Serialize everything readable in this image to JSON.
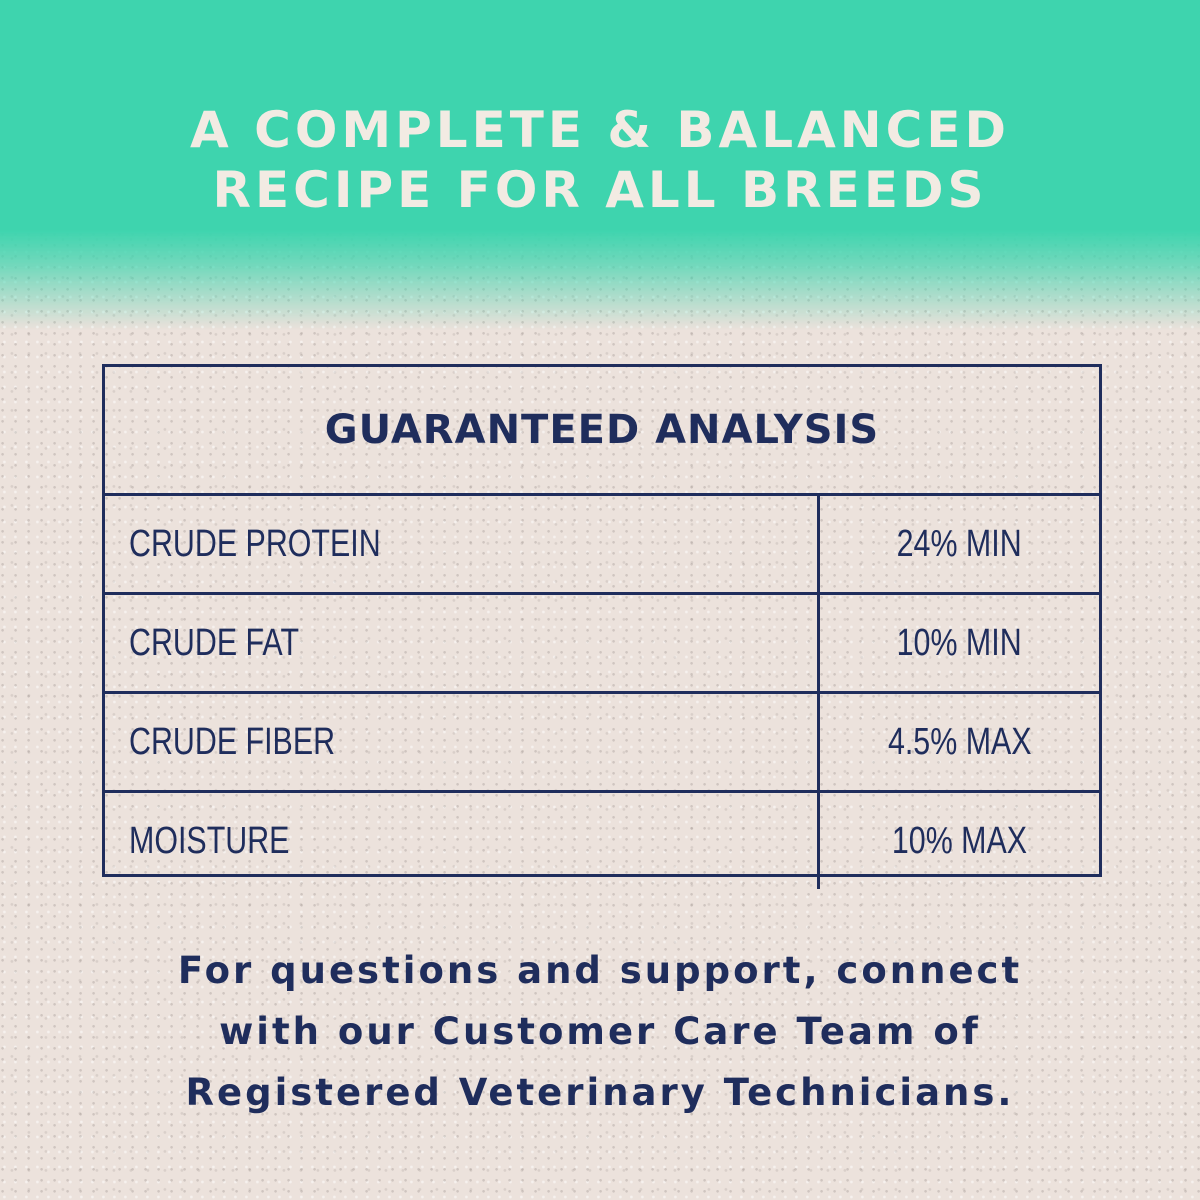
{
  "colors": {
    "teal": "#3ed4ae",
    "background": "#ece2dc",
    "navy": "#1f2d5c",
    "title_text": "#f2ebe3"
  },
  "title": {
    "line1": "A COMPLETE & BALANCED",
    "line2": "RECIPE FOR ALL BREEDS"
  },
  "table": {
    "heading": "GUARANTEED ANALYSIS",
    "rows": [
      {
        "label": "CRUDE PROTEIN",
        "value": "24% MIN"
      },
      {
        "label": "CRUDE FAT",
        "value": "10% MIN"
      },
      {
        "label": "CRUDE FIBER",
        "value": "4.5% MAX"
      },
      {
        "label": "MOISTURE",
        "value": "10% MAX"
      }
    ]
  },
  "footer": {
    "line1": "For questions and support, connect",
    "line2": "with our Customer Care Team of",
    "line3": "Registered Veterinary Technicians."
  }
}
